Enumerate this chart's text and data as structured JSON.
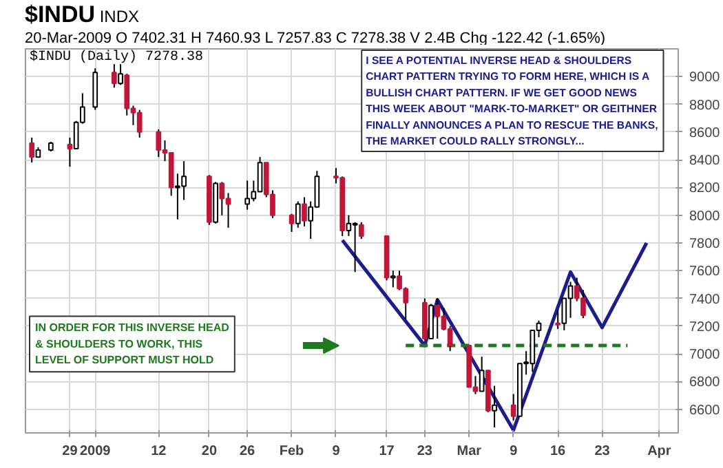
{
  "chart_data": {
    "type": "candlestick",
    "title": "$INDU",
    "subtitle": "20-Mar-2009   O 7402.31  H 7460.93  L 7257.83  C 7278.38  V 2.4B  Chg -122.42 (-1.65%)",
    "annotations": [
      "INDX",
      "$INDU (Daily) 7278.38",
      "I SEE A POTENTIAL INVERSE HEAD & SHOULDERS\nCHART PATTERN TRYING TO FORM HERE, WHICH IS A\nBULLISH CHART PATTERN.  IF WE GET GOOD NEWS\nTHIS WEEK ABOUT \"MARK-TO-MARKET\" OR GEITHNER\nFINALLY ANNOUNCES A PLAN TO RESCUE THE BANKS,\nTHE MARKET COULD RALLY STRONGLY...",
      "IN ORDER FOR THIS INVERSE HEAD\n& SHOULDERS TO WORK, THIS\nLEVEL OF SUPPORT MUST HOLD"
    ],
    "x": [
      "2008-12-23",
      "2008-12-24",
      "2008-12-26",
      "2008-12-29",
      "2008-12-30",
      "2008-12-31",
      "2009-01-02",
      "2009-01-05",
      "2009-01-06",
      "2009-01-07",
      "2009-01-08",
      "2009-01-09",
      "2009-01-12",
      "2009-01-13",
      "2009-01-14",
      "2009-01-15",
      "2009-01-16",
      "2009-01-20",
      "2009-01-21",
      "2009-01-22",
      "2009-01-23",
      "2009-01-26",
      "2009-01-27",
      "2009-01-28",
      "2009-01-29",
      "2009-01-30",
      "2009-02-02",
      "2009-02-03",
      "2009-02-04",
      "2009-02-05",
      "2009-02-06",
      "2009-02-09",
      "2009-02-10",
      "2009-02-11",
      "2009-02-12",
      "2009-02-13",
      "2009-02-17",
      "2009-02-18",
      "2009-02-19",
      "2009-02-20",
      "2009-02-23",
      "2009-02-24",
      "2009-02-25",
      "2009-02-26",
      "2009-02-27",
      "2009-03-02",
      "2009-03-03",
      "2009-03-04",
      "2009-03-05",
      "2009-03-06",
      "2009-03-09",
      "2009-03-10",
      "2009-03-11",
      "2009-03-12",
      "2009-03-13",
      "2009-03-16",
      "2009-03-17",
      "2009-03-18",
      "2009-03-19",
      "2009-03-20"
    ],
    "ohlc": [
      [
        8520,
        8560,
        8380,
        8420
      ],
      [
        8420,
        8490,
        8420,
        8470
      ],
      [
        8470,
        8530,
        8460,
        8520
      ],
      [
        8510,
        8560,
        8350,
        8480
      ],
      [
        8480,
        8680,
        8480,
        8670
      ],
      [
        8670,
        8880,
        8660,
        8780
      ],
      [
        8780,
        9060,
        8760,
        9030
      ],
      [
        9030,
        9090,
        8920,
        8950
      ],
      [
        8950,
        9090,
        8940,
        9020
      ],
      [
        9010,
        9020,
        8720,
        8770
      ],
      [
        8770,
        8790,
        8650,
        8740
      ],
      [
        8740,
        8760,
        8560,
        8600
      ],
      [
        8600,
        8620,
        8420,
        8470
      ],
      [
        8470,
        8540,
        8390,
        8450
      ],
      [
        8450,
        8450,
        8140,
        8200
      ],
      [
        8200,
        8300,
        7970,
        8210
      ],
      [
        8210,
        8390,
        8110,
        8280
      ],
      [
        8280,
        8290,
        7930,
        7950
      ],
      [
        7950,
        8240,
        7940,
        8230
      ],
      [
        8230,
        8240,
        8000,
        8120
      ],
      [
        8120,
        8160,
        7910,
        8080
      ],
      [
        8080,
        8250,
        8040,
        8120
      ],
      [
        8120,
        8250,
        8100,
        8170
      ],
      [
        8170,
        8420,
        8170,
        8380
      ],
      [
        8380,
        8380,
        8130,
        8150
      ],
      [
        8150,
        8180,
        7980,
        8000
      ],
      [
        8000,
        8010,
        7880,
        7940
      ],
      [
        7940,
        8100,
        7910,
        8080
      ],
      [
        8080,
        8130,
        7920,
        7960
      ],
      [
        7960,
        8100,
        7830,
        8060
      ],
      [
        8060,
        8320,
        8060,
        8280
      ],
      [
        8280,
        8340,
        8230,
        8270
      ],
      [
        8270,
        8280,
        7850,
        7890
      ],
      [
        7890,
        8000,
        7850,
        7940
      ],
      [
        7930,
        7950,
        7590,
        7940
      ],
      [
        7930,
        7950,
        7830,
        7850
      ],
      [
        7850,
        7850,
        7530,
        7550
      ],
      [
        7550,
        7600,
        7480,
        7560
      ],
      [
        7560,
        7600,
        7460,
        7470
      ],
      [
        7470,
        7480,
        7250,
        7370
      ],
      [
        7370,
        7400,
        7100,
        7110
      ],
      [
        7110,
        7360,
        7110,
        7350
      ],
      [
        7350,
        7400,
        7110,
        7270
      ],
      [
        7270,
        7330,
        7170,
        7180
      ],
      [
        7180,
        7200,
        7020,
        7060
      ],
      [
        7060,
        7060,
        6760,
        6760
      ],
      [
        6760,
        6840,
        6710,
        6730
      ],
      [
        6730,
        6980,
        6730,
        6880
      ],
      [
        6880,
        6880,
        6580,
        6590
      ],
      [
        6590,
        6770,
        6470,
        6630
      ],
      [
        6630,
        6710,
        6520,
        6550
      ],
      [
        6550,
        6930,
        6550,
        6930
      ],
      [
        6930,
        7020,
        6850,
        6940
      ],
      [
        6930,
        7170,
        6870,
        7170
      ],
      [
        7170,
        7240,
        7120,
        7220
      ],
      [
        7220,
        7320,
        7180,
        7210
      ],
      [
        7220,
        7400,
        7170,
        7400
      ],
      [
        7400,
        7520,
        7260,
        7490
      ],
      [
        7490,
        7550,
        7380,
        7400
      ],
      [
        7402.31,
        7460.93,
        7257.83,
        7278.38
      ]
    ],
    "colors": [
      "#c0163a",
      "#ffffff",
      "#ffffff",
      "#c0163a",
      "#ffffff",
      "#ffffff",
      "#ffffff",
      "#c0163a",
      "#ffffff",
      "#c0163a",
      "#c0163a",
      "#c0163a",
      "#c0163a",
      "#c0163a",
      "#c0163a",
      "#ffffff",
      "#ffffff",
      "#c0163a",
      "#ffffff",
      "#c0163a",
      "#c0163a",
      "#ffffff",
      "#ffffff",
      "#ffffff",
      "#c0163a",
      "#c0163a",
      "#c0163a",
      "#ffffff",
      "#c0163a",
      "#ffffff",
      "#ffffff",
      "#c0163a",
      "#c0163a",
      "#ffffff",
      "#ffffff",
      "#c0163a",
      "#c0163a",
      "#ffffff",
      "#c0163a",
      "#c0163a",
      "#c0163a",
      "#ffffff",
      "#c0163a",
      "#c0163a",
      "#c0163a",
      "#c0163a",
      "#c0163a",
      "#ffffff",
      "#c0163a",
      "#ffffff",
      "#c0163a",
      "#ffffff",
      "#ffffff",
      "#ffffff",
      "#ffffff",
      "#c0163a",
      "#ffffff",
      "#ffffff",
      "#c0163a",
      "#c0163a"
    ],
    "series": [
      {
        "type": "line",
        "color": "#1c1c8c",
        "line_style": "solid",
        "x": [
          "2009-02-10",
          "2009-02-23",
          "2009-02-25",
          "2009-03-09",
          "2009-03-18",
          "2009-03-23",
          "2009-03-30"
        ],
        "values": [
          7820,
          7060,
          7390,
          6450,
          7590,
          7190,
          7800
        ]
      },
      {
        "type": "line",
        "color": "#1f7a1f",
        "line_style": "dashed",
        "x": [
          "2009-02-20",
          "2009-03-27"
        ],
        "values": [
          7060,
          7060
        ]
      }
    ],
    "xlim": [
      "2008-12-22",
      "2009-04-04"
    ],
    "xticks": [
      {
        "value": "2008-12-29",
        "label": "29"
      },
      {
        "value": "2009-01-02",
        "label": "2009"
      },
      {
        "value": "2009-01-12",
        "label": "12"
      },
      {
        "value": "2009-01-20",
        "label": "20"
      },
      {
        "value": "2009-01-26",
        "label": "26"
      },
      {
        "value": "2009-02-02",
        "label": "Feb"
      },
      {
        "value": "2009-02-09",
        "label": "9"
      },
      {
        "value": "2009-02-17",
        "label": "17"
      },
      {
        "value": "2009-02-23",
        "label": "23"
      },
      {
        "value": "2009-03-02",
        "label": "Mar"
      },
      {
        "value": "2009-03-09",
        "label": "9"
      },
      {
        "value": "2009-03-16",
        "label": "16"
      },
      {
        "value": "2009-03-23",
        "label": "23"
      },
      {
        "value": "2009-04-01",
        "label": "Apr"
      }
    ],
    "ylim": [
      6430,
      9200
    ],
    "yticks": [
      6600,
      6800,
      7000,
      7200,
      7400,
      7600,
      7800,
      8000,
      8200,
      8400,
      8600,
      8800,
      9000
    ],
    "grid": true,
    "marker": "none"
  }
}
